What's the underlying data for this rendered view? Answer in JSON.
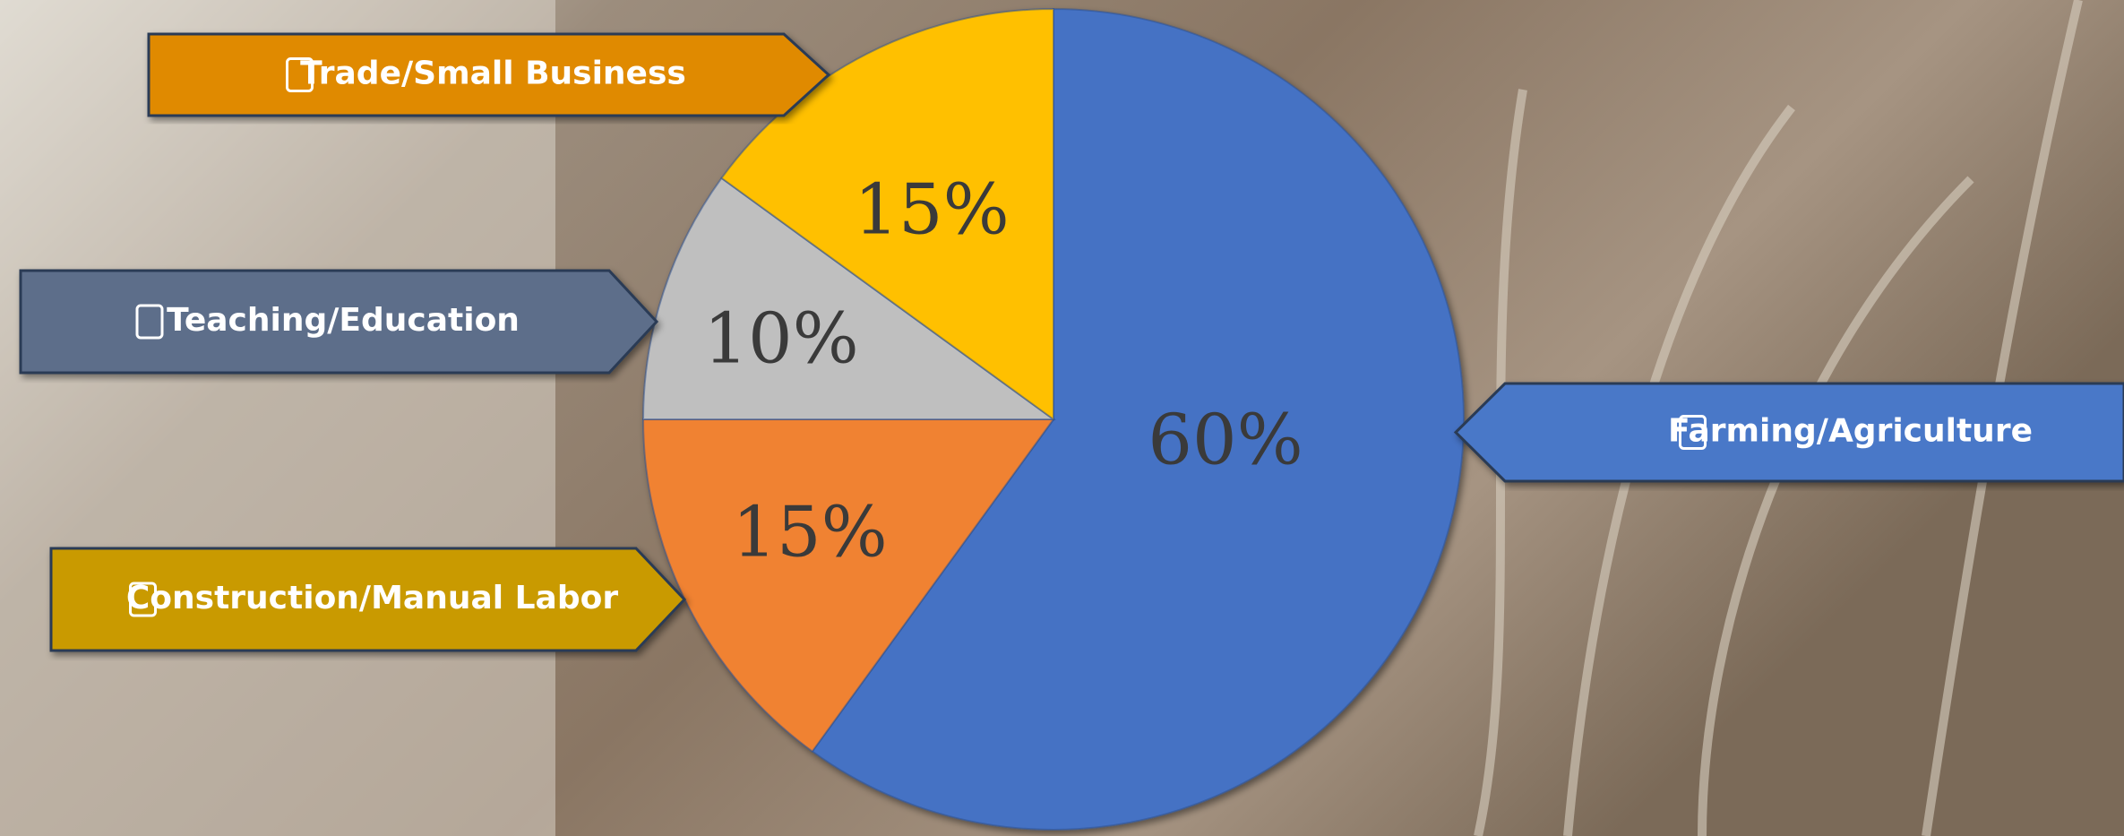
{
  "chart_data": {
    "type": "pie",
    "categories": [
      "Farming/Agriculture",
      "Construction/Manual Labor",
      "Teaching/Education",
      "Trade/Small Business"
    ],
    "values": [
      60,
      15,
      10,
      15
    ],
    "value_labels": [
      "60%",
      "15%",
      "10%",
      "15%"
    ],
    "colors": [
      "#4472c4",
      "#f08232",
      "#bfbfbf",
      "#ffc000"
    ],
    "label_colors": [
      "#4a78c8",
      "#c99a00",
      "#5d6e8a",
      "#e08a00"
    ]
  }
}
